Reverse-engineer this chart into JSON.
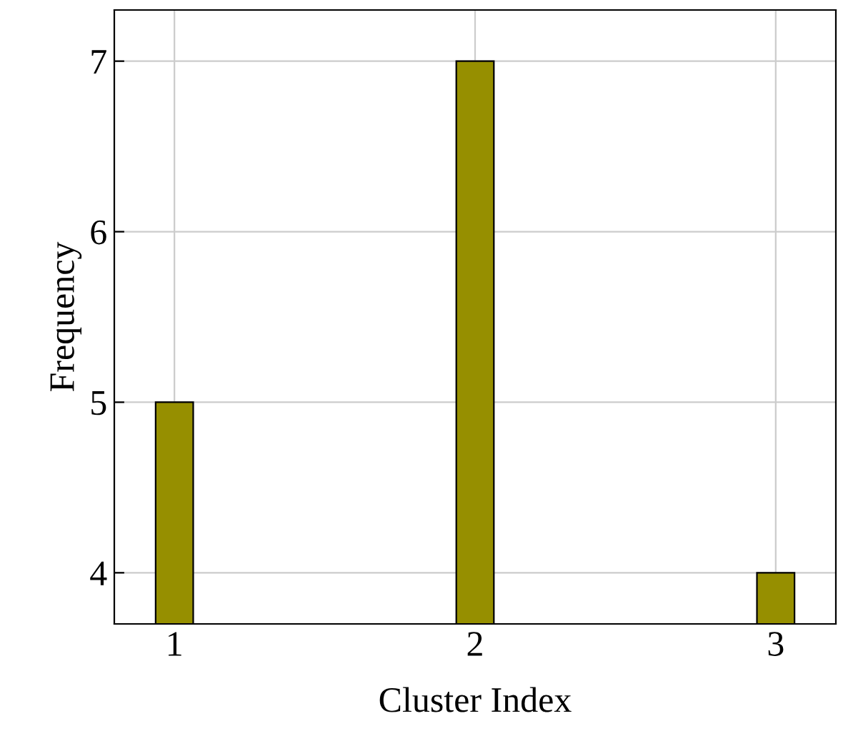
{
  "chart_data": {
    "type": "bar",
    "xlabel": "Cluster Index",
    "ylabel": "Frequency",
    "x": [
      1,
      2,
      3
    ],
    "values": [
      5,
      7,
      4
    ],
    "color": "#968f00",
    "xlim": [
      0.8,
      3.2
    ],
    "ylim": [
      3.7,
      7.3
    ],
    "xticks": [
      1,
      2,
      3
    ],
    "yticks": [
      4,
      5,
      6,
      7
    ],
    "grid": true
  }
}
